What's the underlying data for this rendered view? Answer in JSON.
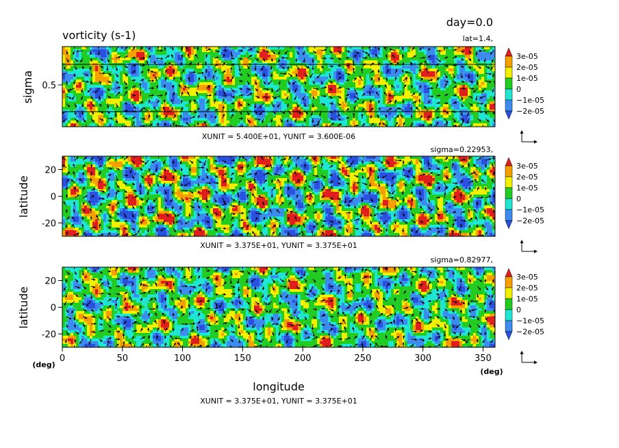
{
  "header": {
    "title": "vorticity (s-1)",
    "time_label": "day=0.0"
  },
  "colorbar": {
    "labels": [
      "3e-05",
      "2e-05",
      "1e-05",
      "0",
      "−1e-05",
      "−2e-05"
    ],
    "colors": [
      "#e01e1e",
      "#f5a000",
      "#f0f000",
      "#22cc22",
      "#1fe6d2",
      "#3c8cf0",
      "#2a50e0"
    ]
  },
  "colors": {
    "level_neg2": "#2a50e0",
    "level_neg1": "#3c8cf0",
    "level_neg0": "#1fe6d2",
    "level_pos0": "#22cc22",
    "level_pos1": "#f0f000",
    "level_pos2": "#f5a000",
    "level_pos3": "#e01e1e",
    "vector": "#000000"
  },
  "icons": {
    "unit_vector_reference": "l-shaped-arrow-icon"
  },
  "chart_data": [
    {
      "type": "heatmap",
      "subtitle": "lat=1.4,",
      "ylabel": "sigma",
      "yticks": [
        0.5
      ],
      "ylim": [
        0,
        1
      ],
      "xlim": [
        0,
        360
      ],
      "vector_units": "XUNIT = 5.400E+01, YUNIT = 3.600E-06",
      "contour_levels": [
        -2e-05,
        -1e-05,
        0,
        1e-05,
        2e-05,
        3e-05
      ],
      "overlay": "vectors"
    },
    {
      "type": "heatmap",
      "subtitle": "sigma=0.22953,",
      "ylabel": "latitude",
      "yticks": [
        -20,
        0,
        20
      ],
      "ylim": [
        -30,
        30
      ],
      "xlim": [
        0,
        360
      ],
      "vector_units": "XUNIT = 3.375E+01, YUNIT = 3.375E+01",
      "contour_levels": [
        -2e-05,
        -1e-05,
        0,
        1e-05,
        2e-05,
        3e-05
      ],
      "overlay": "vectors"
    },
    {
      "type": "heatmap",
      "subtitle": "sigma=0.82977,",
      "ylabel": "latitude",
      "yticks": [
        -20,
        0,
        20
      ],
      "ylim": [
        -30,
        30
      ],
      "xlim": [
        0,
        360
      ],
      "xlabel": "longitude",
      "xticks": [
        0,
        50,
        100,
        150,
        200,
        250,
        300,
        350
      ],
      "x_unit_label": "(deg)",
      "y_unit_label": "(deg)",
      "vector_units": "XUNIT = 3.375E+01, YUNIT = 3.375E+01",
      "contour_levels": [
        -2e-05,
        -1e-05,
        0,
        1e-05,
        2e-05,
        3e-05
      ],
      "overlay": "vectors"
    }
  ]
}
